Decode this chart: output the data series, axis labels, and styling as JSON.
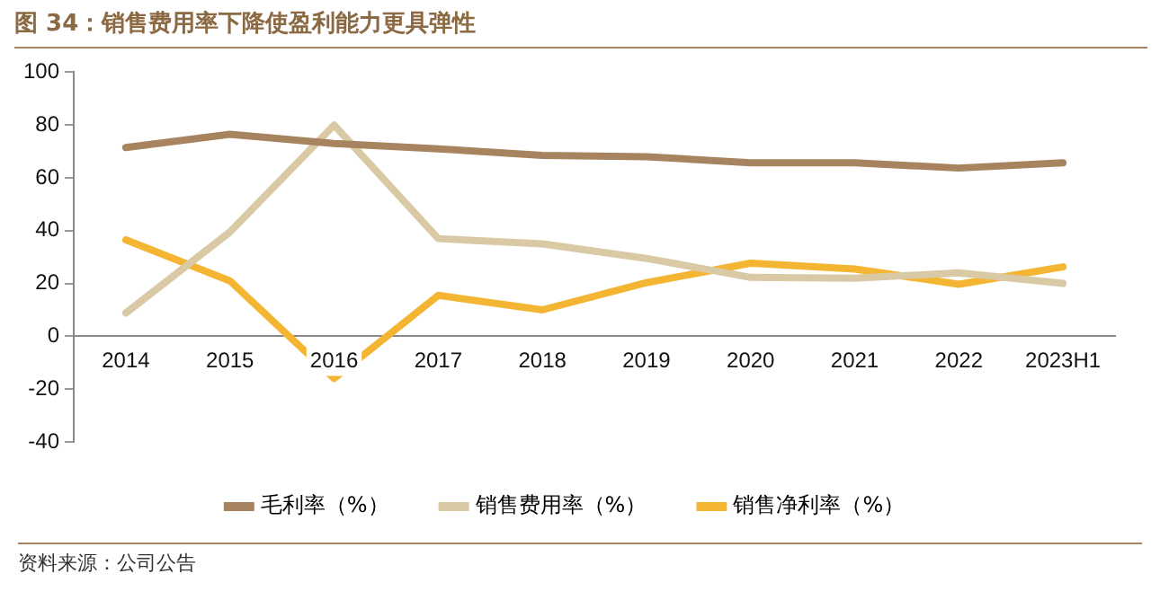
{
  "chart_data": {
    "type": "line",
    "title": "图 34：销售费用率下降使盈利能力更具弹性",
    "categories": [
      "2014",
      "2015",
      "2016",
      "2017",
      "2018",
      "2019",
      "2020",
      "2021",
      "2022",
      "2023H1"
    ],
    "series": [
      {
        "name": "毛利率（%）",
        "color": "#a88360",
        "values": [
          71.5,
          76.5,
          73,
          71,
          68.5,
          68,
          65.7,
          65.7,
          63.7,
          65.7
        ]
      },
      {
        "name": "销售费用率（%）",
        "color": "#d9c9a4",
        "values": [
          8.8,
          39.5,
          80,
          37,
          35,
          29.5,
          22.3,
          22,
          24,
          20
        ]
      },
      {
        "name": "销售净利率（%）",
        "color": "#f4b533",
        "values": [
          36.5,
          21,
          -16,
          15.5,
          10,
          20.3,
          27.7,
          25.5,
          19.7,
          26.3
        ]
      }
    ],
    "ylim": [
      -40,
      100
    ],
    "yticks": [
      -40,
      -20,
      0,
      20,
      40,
      60,
      80,
      100
    ],
    "grid": false,
    "legend": "bottom",
    "marker": "none",
    "line_style": "solid",
    "annotations": [
      "资料来源：公司公告"
    ]
  }
}
